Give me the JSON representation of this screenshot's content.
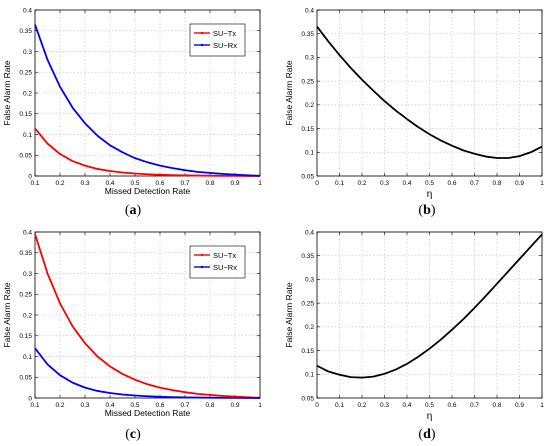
{
  "captions": {
    "a": "a",
    "b": "b",
    "c": "c",
    "d": "d"
  },
  "colors": {
    "red": "#ff0000",
    "blue": "#0000ff",
    "black": "#000000",
    "grid": "#c8c8c8"
  },
  "chart_data": [
    {
      "id": "a",
      "type": "line",
      "xlabel": "Missed Detection Rate",
      "ylabel": "False Alarm Rate",
      "xlim": [
        0.1,
        1
      ],
      "ylim": [
        0,
        0.4
      ],
      "xticks": [
        "0.1",
        "0.2",
        "0.3",
        "0.4",
        "0.5",
        "0.6",
        "0.7",
        "0.8",
        "0.9",
        "1"
      ],
      "yticks": [
        "0",
        "0.05",
        "0.1",
        "0.15",
        "0.2",
        "0.25",
        "0.3",
        "0.35",
        "0.4"
      ],
      "grid": true,
      "legend": "top-right",
      "x": [
        0.1,
        0.15,
        0.2,
        0.25,
        0.3,
        0.35,
        0.4,
        0.45,
        0.5,
        0.55,
        0.6,
        0.65,
        0.7,
        0.75,
        0.8,
        0.85,
        0.9,
        0.95,
        1.0
      ],
      "series": [
        {
          "name": "SU−Tx",
          "color": "#ff0000",
          "values": [
            0.115,
            0.078,
            0.053,
            0.036,
            0.025,
            0.017,
            0.012,
            0.0085,
            0.006,
            0.0042,
            0.003,
            0.0021,
            0.0015,
            0.001,
            0.0007,
            0.0005,
            0.0003,
            0.0002,
            0.0001
          ]
        },
        {
          "name": "SU−Rx",
          "color": "#0000ff",
          "values": [
            0.365,
            0.28,
            0.215,
            0.165,
            0.127,
            0.097,
            0.074,
            0.057,
            0.043,
            0.033,
            0.025,
            0.019,
            0.014,
            0.01,
            0.0075,
            0.0052,
            0.0033,
            0.0017,
            0.0005
          ]
        }
      ]
    },
    {
      "id": "b",
      "type": "line",
      "xlabel": "η",
      "ylabel": "False Alarm Rate",
      "xlim": [
        0,
        1
      ],
      "ylim": [
        0.05,
        0.4
      ],
      "xticks": [
        "0",
        "0.1",
        "0.2",
        "0.3",
        "0.4",
        "0.5",
        "0.6",
        "0.7",
        "0.8",
        "0.9",
        "1"
      ],
      "yticks": [
        "0.05",
        "0.1",
        "0.15",
        "0.2",
        "0.25",
        "0.3",
        "0.35",
        "0.4"
      ],
      "grid": true,
      "x": [
        0,
        0.05,
        0.1,
        0.15,
        0.2,
        0.25,
        0.3,
        0.35,
        0.4,
        0.45,
        0.5,
        0.55,
        0.6,
        0.65,
        0.7,
        0.75,
        0.8,
        0.85,
        0.9,
        0.95,
        1.0
      ],
      "series": [
        {
          "color": "#000000",
          "values": [
            0.365,
            0.334,
            0.305,
            0.278,
            0.253,
            0.23,
            0.208,
            0.188,
            0.17,
            0.153,
            0.138,
            0.125,
            0.114,
            0.104,
            0.097,
            0.091,
            0.088,
            0.088,
            0.092,
            0.1,
            0.112
          ]
        }
      ]
    },
    {
      "id": "c",
      "type": "line",
      "xlabel": "Missed Detection Rate",
      "ylabel": "False Alarm Rate",
      "xlim": [
        0.1,
        1
      ],
      "ylim": [
        0,
        0.4
      ],
      "xticks": [
        "0.1",
        "0.2",
        "0.3",
        "0.4",
        "0.5",
        "0.6",
        "0.7",
        "0.8",
        "0.9",
        "1"
      ],
      "yticks": [
        "0",
        "0.05",
        "0.1",
        "0.15",
        "0.2",
        "0.25",
        "0.3",
        "0.35",
        "0.4"
      ],
      "grid": true,
      "legend": "top-right",
      "x": [
        0.1,
        0.15,
        0.2,
        0.25,
        0.3,
        0.35,
        0.4,
        0.45,
        0.5,
        0.55,
        0.6,
        0.65,
        0.7,
        0.75,
        0.8,
        0.85,
        0.9,
        0.95,
        1.0
      ],
      "series": [
        {
          "name": "SU−Tx",
          "color": "#ff0000",
          "values": [
            0.395,
            0.3,
            0.228,
            0.173,
            0.132,
            0.1,
            0.076,
            0.058,
            0.044,
            0.033,
            0.025,
            0.019,
            0.014,
            0.01,
            0.0075,
            0.0052,
            0.0033,
            0.0017,
            0.0005
          ]
        },
        {
          "name": "SU−Rx",
          "color": "#0000ff",
          "values": [
            0.12,
            0.081,
            0.055,
            0.037,
            0.025,
            0.017,
            0.012,
            0.0085,
            0.006,
            0.0042,
            0.003,
            0.0021,
            0.0015,
            0.001,
            0.0007,
            0.0005,
            0.0003,
            0.0002,
            0.0001
          ]
        }
      ]
    },
    {
      "id": "d",
      "type": "line",
      "xlabel": "η",
      "ylabel": "False Alarm Rate",
      "xlim": [
        0,
        1
      ],
      "ylim": [
        0.05,
        0.4
      ],
      "xticks": [
        "0",
        "0.1",
        "0.2",
        "0.3",
        "0.4",
        "0.5",
        "0.6",
        "0.7",
        "0.8",
        "0.9",
        "1"
      ],
      "yticks": [
        "0.05",
        "0.1",
        "0.15",
        "0.2",
        "0.25",
        "0.3",
        "0.35",
        "0.4"
      ],
      "grid": true,
      "x": [
        0,
        0.05,
        0.1,
        0.15,
        0.2,
        0.25,
        0.3,
        0.35,
        0.4,
        0.45,
        0.5,
        0.55,
        0.6,
        0.65,
        0.7,
        0.75,
        0.8,
        0.85,
        0.9,
        0.95,
        1.0
      ],
      "series": [
        {
          "color": "#000000",
          "values": [
            0.118,
            0.106,
            0.099,
            0.094,
            0.093,
            0.095,
            0.101,
            0.11,
            0.122,
            0.137,
            0.154,
            0.173,
            0.194,
            0.216,
            0.24,
            0.265,
            0.291,
            0.317,
            0.343,
            0.369,
            0.395
          ]
        }
      ]
    }
  ]
}
